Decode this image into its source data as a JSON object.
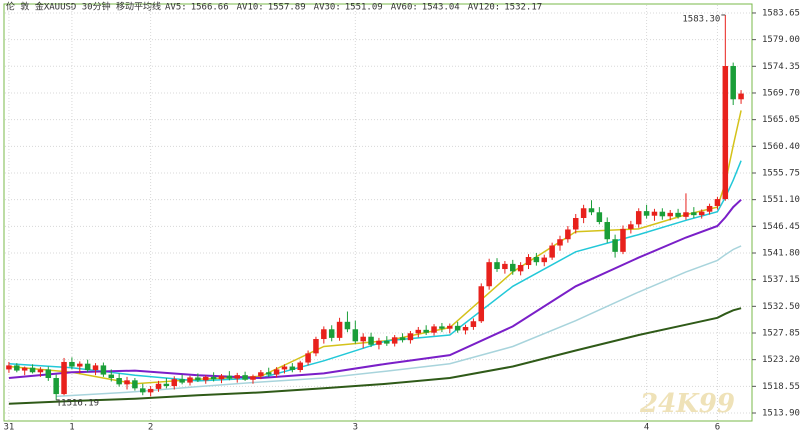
{
  "chart_data": {
    "type": "candlestick",
    "title": "伦 敦 金XAUUSD 30分钟 移动平均线",
    "categories": [
      "31",
      null,
      null,
      null,
      null,
      null,
      null,
      null,
      "1",
      null,
      null,
      null,
      null,
      null,
      null,
      null,
      null,
      null,
      "2",
      null,
      null,
      null,
      null,
      null,
      null,
      null,
      null,
      null,
      null,
      null,
      null,
      null,
      null,
      null,
      null,
      null,
      null,
      null,
      null,
      null,
      null,
      null,
      null,
      null,
      "3",
      null,
      null,
      null,
      null,
      null,
      null,
      null,
      null,
      null,
      null,
      null,
      null,
      null,
      null,
      null,
      null,
      null,
      null,
      null,
      null,
      null,
      null,
      null,
      null,
      null,
      null,
      null,
      null,
      null,
      null,
      null,
      null,
      null,
      null,
      null,
      null,
      "4",
      null,
      null,
      null,
      null,
      null,
      null,
      null,
      null,
      "6",
      null,
      null,
      null
    ],
    "open": [
      1521.5,
      1522.2,
      1521.3,
      1521.8,
      1521.0,
      1521.5,
      1520.0,
      1517.2,
      1522.8,
      1522.0,
      1522.5,
      1521.4,
      1522.2,
      1520.6,
      1520.0,
      1518.9,
      1519.6,
      1518.2,
      1517.5,
      1518.1,
      1519.0,
      1518.6,
      1519.8,
      1519.2,
      1520.1,
      1519.6,
      1520.2,
      1519.8,
      1520.4,
      1519.9,
      1520.5,
      1519.7,
      1520.3,
      1521.0,
      1520.6,
      1521.5,
      1522.0,
      1521.4,
      1522.7,
      1524.3,
      1526.8,
      1528.5,
      1527.0,
      1529.8,
      1528.5,
      1526.4,
      1527.2,
      1525.8,
      1526.5,
      1526.0,
      1527.1,
      1526.6,
      1527.8,
      1528.4,
      1527.9,
      1529.0,
      1528.6,
      1529.1,
      1528.3,
      1528.9,
      1529.9,
      1536.0,
      1540.2,
      1539.0,
      1539.9,
      1538.6,
      1539.7,
      1541.1,
      1540.2,
      1541.0,
      1543.1,
      1544.2,
      1545.9,
      1547.9,
      1549.6,
      1548.9,
      1547.2,
      1544.2,
      1542.0,
      1546.0,
      1546.8,
      1549.1,
      1548.3,
      1549.0,
      1548.2,
      1548.8,
      1548.1,
      1548.9,
      1548.4,
      1549.0,
      1550.0,
      1551.2,
      1574.4,
      1568.6
    ],
    "high": [
      1522.8,
      1522.6,
      1522.0,
      1522.4,
      1521.9,
      1522.0,
      1520.6,
      1523.5,
      1523.6,
      1522.9,
      1523.2,
      1522.6,
      1522.7,
      1521.5,
      1520.8,
      1520.2,
      1520.0,
      1519.0,
      1518.6,
      1519.5,
      1520.0,
      1520.3,
      1520.6,
      1520.4,
      1520.8,
      1520.5,
      1521.0,
      1520.7,
      1521.2,
      1520.9,
      1521.1,
      1520.6,
      1521.4,
      1521.8,
      1521.9,
      1522.4,
      1522.6,
      1523.0,
      1524.8,
      1527.2,
      1529.0,
      1529.2,
      1530.5,
      1531.6,
      1530.0,
      1527.8,
      1527.9,
      1527.0,
      1527.3,
      1527.5,
      1527.8,
      1528.2,
      1528.9,
      1529.2,
      1529.4,
      1529.6,
      1529.5,
      1529.8,
      1529.3,
      1530.4,
      1536.5,
      1540.8,
      1540.9,
      1540.4,
      1540.6,
      1540.2,
      1541.6,
      1541.8,
      1541.5,
      1543.6,
      1544.8,
      1546.5,
      1548.6,
      1550.2,
      1551.0,
      1549.8,
      1548.0,
      1545.0,
      1546.6,
      1547.4,
      1549.6,
      1550.2,
      1549.5,
      1549.6,
      1549.3,
      1549.5,
      1552.2,
      1549.8,
      1549.4,
      1550.4,
      1551.6,
      1583.3,
      1575.0,
      1570.2
    ],
    "low": [
      1520.9,
      1521.0,
      1520.5,
      1520.8,
      1520.2,
      1519.5,
      1516.19,
      1517.0,
      1521.5,
      1520.8,
      1521.0,
      1520.5,
      1520.2,
      1519.4,
      1518.5,
      1518.0,
      1517.8,
      1517.0,
      1516.8,
      1517.6,
      1518.2,
      1518.0,
      1518.9,
      1518.7,
      1519.3,
      1519.0,
      1519.4,
      1519.1,
      1519.6,
      1519.2,
      1519.5,
      1519.0,
      1519.8,
      1520.2,
      1520.1,
      1520.8,
      1521.0,
      1521.0,
      1522.2,
      1523.8,
      1526.0,
      1526.4,
      1526.5,
      1528.0,
      1526.0,
      1525.2,
      1525.4,
      1525.0,
      1525.6,
      1525.5,
      1526.2,
      1526.0,
      1527.1,
      1527.5,
      1527.4,
      1528.0,
      1527.8,
      1527.9,
      1527.6,
      1528.4,
      1529.6,
      1535.4,
      1538.5,
      1538.2,
      1538.0,
      1537.9,
      1539.0,
      1539.6,
      1539.5,
      1540.6,
      1542.2,
      1543.6,
      1545.2,
      1547.0,
      1548.4,
      1546.8,
      1543.6,
      1541.0,
      1541.6,
      1545.2,
      1546.2,
      1547.8,
      1547.4,
      1547.6,
      1547.5,
      1547.8,
      1547.6,
      1547.9,
      1547.8,
      1548.5,
      1549.4,
      1550.9,
      1567.6,
      1567.8
    ],
    "close": [
      1522.2,
      1521.3,
      1521.8,
      1521.0,
      1521.5,
      1520.0,
      1517.2,
      1522.8,
      1522.0,
      1522.5,
      1521.4,
      1522.2,
      1520.6,
      1520.0,
      1518.9,
      1519.6,
      1518.2,
      1517.5,
      1518.1,
      1519.0,
      1518.6,
      1519.8,
      1519.2,
      1520.1,
      1519.6,
      1520.2,
      1519.8,
      1520.4,
      1519.9,
      1520.5,
      1519.7,
      1520.3,
      1521.0,
      1520.6,
      1521.5,
      1522.0,
      1521.4,
      1522.7,
      1524.3,
      1526.8,
      1528.5,
      1527.0,
      1529.8,
      1528.5,
      1526.4,
      1527.2,
      1525.8,
      1526.5,
      1526.0,
      1527.1,
      1526.6,
      1527.8,
      1528.4,
      1527.9,
      1529.0,
      1528.6,
      1529.1,
      1528.3,
      1528.9,
      1529.9,
      1536.0,
      1540.2,
      1539.0,
      1539.9,
      1538.6,
      1539.7,
      1541.1,
      1540.2,
      1541.0,
      1543.1,
      1544.2,
      1545.9,
      1547.9,
      1549.6,
      1548.9,
      1547.2,
      1544.2,
      1542.0,
      1546.0,
      1546.8,
      1549.1,
      1548.3,
      1549.0,
      1548.2,
      1548.8,
      1548.1,
      1548.9,
      1548.4,
      1549.0,
      1550.0,
      1551.2,
      1574.4,
      1568.6,
      1569.6
    ],
    "up_color": "#e8211c",
    "down_color": "#1a9e38",
    "series": [
      {
        "name": "AV5:",
        "color": "#d4c21a",
        "x": [
          0,
          8,
          16,
          24,
          32,
          40,
          48,
          56,
          64,
          72,
          80,
          86,
          90,
          91,
          92,
          93
        ],
        "values": [
          1522,
          1521,
          1519,
          1519.8,
          1520.3,
          1525.5,
          1526.5,
          1528.8,
          1538.5,
          1545.5,
          1546,
          1548.5,
          1549.8,
          1554,
          1560.5,
          1566.66
        ]
      },
      {
        "name": "AV10:",
        "color": "#22c8d8",
        "x": [
          0,
          8,
          16,
          24,
          32,
          40,
          48,
          56,
          64,
          72,
          80,
          86,
          90,
          91,
          92,
          93
        ],
        "values": [
          1522.5,
          1521.8,
          1520.5,
          1519.5,
          1520,
          1523,
          1526.5,
          1527.5,
          1536,
          1542,
          1545,
          1547.5,
          1549,
          1551.5,
          1554.5,
          1557.89
        ]
      },
      {
        "name": "AV30:",
        "color": "#7a1fc8",
        "x": [
          0,
          8,
          16,
          24,
          32,
          40,
          48,
          56,
          64,
          72,
          80,
          86,
          90,
          91,
          92,
          93
        ],
        "values": [
          1520,
          1521,
          1521.3,
          1520.5,
          1520,
          1520.8,
          1522.5,
          1524,
          1529,
          1536,
          1541,
          1544.5,
          1546.5,
          1548,
          1549.8,
          1551.09
        ]
      },
      {
        "name": "AV60:",
        "color": "#a8d4dc",
        "x": [
          6,
          16,
          24,
          32,
          40,
          48,
          56,
          64,
          72,
          80,
          86,
          90,
          91,
          92,
          93
        ],
        "values": [
          1516.8,
          1517.6,
          1518.5,
          1519.3,
          1520,
          1521.2,
          1522.5,
          1525.5,
          1530,
          1535,
          1538.5,
          1540.5,
          1541.5,
          1542.4,
          1543.04
        ]
      },
      {
        "name": "AV120:",
        "color": "#2f5a18",
        "x": [
          0,
          8,
          16,
          24,
          32,
          40,
          48,
          56,
          64,
          72,
          80,
          86,
          90,
          91,
          92,
          93
        ],
        "values": [
          1515.5,
          1516,
          1516.4,
          1517,
          1517.5,
          1518.2,
          1519,
          1520,
          1522,
          1524.8,
          1527.5,
          1529.3,
          1530.5,
          1531.2,
          1531.8,
          1532.17
        ]
      }
    ],
    "ylim": [
      1512.68,
      1585.04
    ],
    "yticks": [
      {
        "value": 1583.65,
        "label": "1583.65"
      },
      {
        "value": 1579,
        "label": "1579.00"
      },
      {
        "value": 1574.35,
        "label": "1574.35"
      },
      {
        "value": 1569.7,
        "label": "1569.70"
      },
      {
        "value": 1565.05,
        "label": "1565.05"
      },
      {
        "value": 1560.4,
        "label": "1560.40"
      },
      {
        "value": 1555.75,
        "label": "1555.75"
      },
      {
        "value": 1551.1,
        "label": "1551.10"
      },
      {
        "value": 1546.45,
        "label": "1546.45"
      },
      {
        "value": 1541.8,
        "label": "1541.80"
      },
      {
        "value": 1537.15,
        "label": "1537.15"
      },
      {
        "value": 1532.5,
        "label": "1532.50"
      },
      {
        "value": 1527.85,
        "label": "1527.85"
      },
      {
        "value": 1523.2,
        "label": "1523.20"
      },
      {
        "value": 1518.55,
        "label": "1518.55"
      },
      {
        "value": 1513.9,
        "label": "1513.90"
      }
    ],
    "high_label": {
      "value": 1583.3,
      "label": "1583.30"
    },
    "low_label": {
      "value": 1516.19,
      "label": "1516.19"
    },
    "watermark": "24K99",
    "grid": true
  }
}
